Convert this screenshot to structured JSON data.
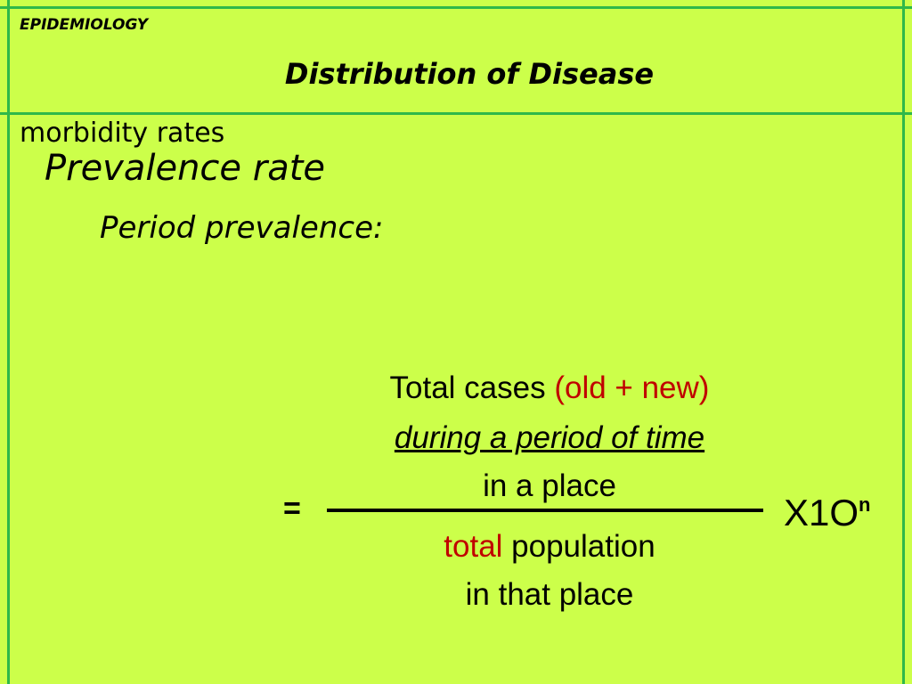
{
  "header": {
    "label": "EPIDEMIOLOGY",
    "title": "Distribution of Disease"
  },
  "section": {
    "label": "morbidity rates",
    "heading": "Prevalence rate",
    "subheading": "Period prevalence:"
  },
  "formula": {
    "equals": "=",
    "numerator": {
      "line1_main": "Total cases ",
      "line1_highlight": "(old + new)",
      "line2": "during a period of time",
      "line3": "in a place"
    },
    "denominator": {
      "line1_highlight": "total",
      "line1_main": " population",
      "line2": "in that place"
    },
    "multiplier_base": "X1O",
    "multiplier_exponent": "n"
  },
  "colors": {
    "background": "#ccff4a",
    "border_lines": "#2eb84a",
    "highlight": "#c00000",
    "text": "#000000"
  }
}
